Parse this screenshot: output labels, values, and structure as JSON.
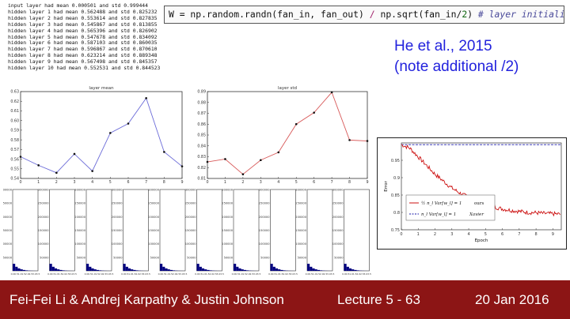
{
  "stats_lines": [
    "input layer had mean 0.000501 and std 0.999444",
    "hidden layer 1 had mean 0.562488 and std 0.825232",
    "hidden layer 2 had mean 0.553614 and std 0.827835",
    "hidden layer 3 had mean 0.545867 and std 0.813855",
    "hidden layer 4 had mean 0.565396 and std 0.826902",
    "hidden layer 5 had mean 0.547678 and std 0.834092",
    "hidden layer 6 had mean 0.587103 and std 0.860035",
    "hidden layer 7 had mean 0.596867 and std 0.870610",
    "hidden layer 8 had mean 0.623214 and std 0.889348",
    "hidden layer 9 had mean 0.567498 and std 0.845357",
    "hidden layer 10 had mean 0.552531 and std 0.844523"
  ],
  "code": {
    "prefix": "W = np.random.randn(fan_in, fan_out) ",
    "divide": "/",
    "middle": " np.sqrt(fan_in/",
    "two": "2",
    "close": ") ",
    "comment": "# layer initialization"
  },
  "citation": {
    "line1": "He et al., 2015",
    "line2": "(note additional /2)"
  },
  "footer": {
    "authors": "Fei-Fei Li & Andrej Karpathy & Justin Johnson",
    "lecture": "Lecture 5 - 63",
    "date": "20 Jan 2016"
  },
  "colors": {
    "footer_bg": "#8c1515",
    "citation": "#2222dd",
    "mean_line": "#6b6bd8",
    "std_line": "#d85a5a",
    "hist_fill": "#00007f",
    "he_ours": "#cc1111",
    "he_xavier": "#1a1aaa"
  },
  "chart_data": [
    {
      "type": "line",
      "title": "layer mean",
      "x": [
        0,
        1,
        2,
        3,
        4,
        5,
        6,
        7,
        8,
        9
      ],
      "y": [
        0.562488,
        0.553614,
        0.545867,
        0.565396,
        0.547678,
        0.587103,
        0.596867,
        0.623214,
        0.567498,
        0.552531
      ],
      "ylim": [
        0.54,
        0.63
      ],
      "yticks": [
        "0.54",
        "0.55",
        "0.56",
        "0.57",
        "0.58",
        "0.59",
        "0.60",
        "0.61",
        "0.62",
        "0.63"
      ],
      "xticks": [
        "0",
        "1",
        "2",
        "3",
        "4",
        "5",
        "6",
        "7",
        "8",
        "9"
      ],
      "grid": false
    },
    {
      "type": "line",
      "title": "layer std",
      "x": [
        0,
        1,
        2,
        3,
        4,
        5,
        6,
        7,
        8,
        9
      ],
      "y": [
        0.825232,
        0.827835,
        0.813855,
        0.826902,
        0.834092,
        0.860035,
        0.87061,
        0.889348,
        0.845357,
        0.844523
      ],
      "ylim": [
        0.81,
        0.89
      ],
      "yticks": [
        "0.81",
        "0.82",
        "0.83",
        "0.84",
        "0.85",
        "0.86",
        "0.87",
        "0.88",
        "0.89"
      ],
      "xticks": [
        "0",
        "1",
        "2",
        "3",
        "4",
        "5",
        "6",
        "7",
        "8",
        "9"
      ],
      "grid": false
    },
    {
      "type": "bar",
      "panels": 10,
      "ylim": [
        0,
        300000
      ],
      "yticks": [
        "50000",
        "100000",
        "150000",
        "200000",
        "250000",
        "300000"
      ],
      "xticks": [
        "0.0",
        "0.5",
        "1.0",
        "1.5",
        "2.0",
        "2.5",
        "3.0",
        "3.5"
      ],
      "values": [
        26000,
        15000,
        9000,
        5500,
        3200,
        1800,
        900,
        450,
        200,
        80
      ]
    },
    {
      "type": "line",
      "xlabel": "Epoch",
      "ylabel": "Error",
      "xticks": [
        "0",
        "1",
        "2",
        "3",
        "4",
        "5",
        "6",
        "7",
        "8",
        "9"
      ],
      "yticks": [
        "0.75",
        "0.8",
        "0.85",
        "0.9",
        "0.95"
      ],
      "ylim": [
        0.75,
        1.0
      ],
      "xlim": [
        0,
        9.5
      ],
      "series": [
        {
          "name": "ours",
          "legend_formula": "½ n_l Var[w_l] = 1",
          "x": [
            0,
            0.5,
            1,
            1.5,
            2,
            2.5,
            3,
            3.5,
            4,
            4.5,
            5,
            5.5,
            6,
            6.5,
            7,
            7.5,
            8,
            8.5,
            9,
            9.5
          ],
          "y": [
            0.995,
            0.985,
            0.96,
            0.935,
            0.91,
            0.89,
            0.87,
            0.855,
            0.843,
            0.832,
            0.823,
            0.816,
            0.81,
            0.806,
            0.803,
            0.8,
            0.799,
            0.797,
            0.796,
            0.795
          ]
        },
        {
          "name": "Xavier",
          "legend_formula": "n_l Var[w_l] = 1",
          "x": [
            0,
            9.5
          ],
          "y": [
            0.995,
            0.995
          ]
        }
      ]
    }
  ]
}
